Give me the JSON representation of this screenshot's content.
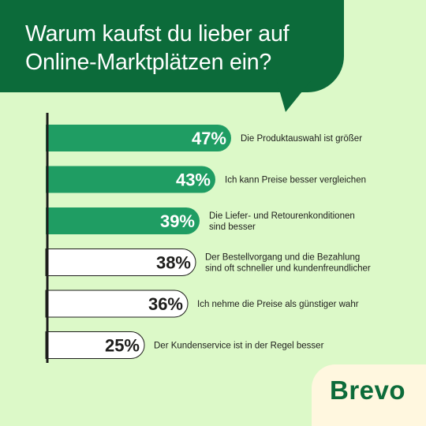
{
  "header": {
    "title_line1": "Warum kaufst du lieber auf",
    "title_line2": "Online-Marktplätzen ein?"
  },
  "brand": {
    "logo_text": "Brevo"
  },
  "colors": {
    "background": "#dcf9c8",
    "header": "#0c6b3a",
    "bar_highlight": "#1f9d63",
    "bar_plain": "#ffffff",
    "axis": "#1d1d1b",
    "logo_bg": "#fff7df"
  },
  "chart_data": {
    "type": "bar",
    "orientation": "horizontal",
    "title": "Warum kaufst du lieber auf Online-Marktplätzen ein?",
    "xlim": [
      0,
      50
    ],
    "values": [
      47,
      43,
      39,
      38,
      36,
      25
    ],
    "value_labels": [
      "47%",
      "43%",
      "39%",
      "38%",
      "36%",
      "25%"
    ],
    "categories": [
      [
        "Die Produktauswahl ist größer"
      ],
      [
        "Ich kann Preise besser vergleichen"
      ],
      [
        "Die Liefer- und Retourenkonditionen",
        "sind besser"
      ],
      [
        "Der Bestellvorgang und die Bezahlung",
        "sind oft schneller und kundenfreundlicher"
      ],
      [
        "Ich nehme die Preise als günstiger wahr"
      ],
      [
        "Der Kundenservice ist in der Regel besser"
      ]
    ],
    "highlighted": [
      true,
      true,
      true,
      false,
      false,
      false
    ]
  }
}
